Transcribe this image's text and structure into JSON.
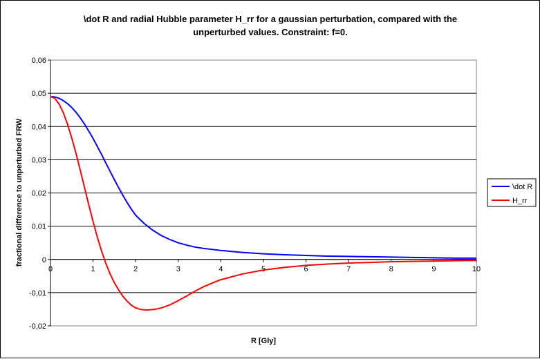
{
  "chart_data": {
    "type": "line",
    "title_lines": [
      "\\dot R and radial Hubble parameter H_rr for a gaussian perturbation, compared with the",
      "unperturbed values. Constraint: f=0."
    ],
    "xlabel": "R [Gly]",
    "ylabel": "fractional difference to unperturbed FRW",
    "xlim": [
      0,
      10
    ],
    "ylim": [
      -0.02,
      0.06
    ],
    "x_ticks": [
      "0",
      "1",
      "2",
      "3",
      "4",
      "5",
      "6",
      "7",
      "8",
      "9",
      "10"
    ],
    "y_ticks": [
      "-0,02",
      "-0,01",
      "0",
      "0,01",
      "0,02",
      "0,03",
      "0,04",
      "0,05",
      "0,06"
    ],
    "grid": "horizontal",
    "legend_position": "right",
    "plot_background": "#ffffff",
    "series": [
      {
        "name": "\\dot R",
        "color": "#0000ff",
        "x": [
          0,
          0.1,
          0.2,
          0.3,
          0.4,
          0.5,
          0.6,
          0.7,
          0.8,
          0.9,
          1.0,
          1.1,
          1.2,
          1.3,
          1.4,
          1.5,
          1.6,
          1.7,
          1.8,
          1.9,
          2.0,
          2.2,
          2.4,
          2.6,
          2.8,
          3.0,
          3.2,
          3.4,
          3.6,
          3.8,
          4.0,
          4.5,
          5.0,
          5.5,
          6.0,
          6.5,
          7.0,
          7.5,
          8.0,
          8.5,
          9.0,
          9.5,
          10.0
        ],
        "y": [
          0.049,
          0.0489,
          0.0485,
          0.0478,
          0.0469,
          0.0457,
          0.0443,
          0.0426,
          0.0407,
          0.0386,
          0.0364,
          0.034,
          0.0316,
          0.029,
          0.0265,
          0.024,
          0.0216,
          0.0193,
          0.0171,
          0.0151,
          0.0133,
          0.0108,
          0.0088,
          0.0072,
          0.006,
          0.005,
          0.0043,
          0.0037,
          0.0033,
          0.003,
          0.0027,
          0.0021,
          0.0017,
          0.0014,
          0.0012,
          0.001,
          0.0009,
          0.0008,
          0.0007,
          0.0006,
          0.0005,
          0.0004,
          0.0004
        ]
      },
      {
        "name": "H_rr",
        "color": "#ff0000",
        "x": [
          0,
          0.1,
          0.2,
          0.3,
          0.4,
          0.5,
          0.6,
          0.7,
          0.8,
          0.9,
          1.0,
          1.1,
          1.2,
          1.3,
          1.4,
          1.5,
          1.6,
          1.7,
          1.8,
          1.9,
          2.0,
          2.1,
          2.2,
          2.3,
          2.4,
          2.5,
          2.6,
          2.8,
          3.0,
          3.2,
          3.4,
          3.6,
          3.8,
          4.0,
          4.5,
          5.0,
          5.5,
          6.0,
          6.5,
          7.0,
          7.5,
          8.0,
          8.5,
          9.0,
          9.5,
          10.0
        ],
        "y": [
          0.049,
          0.0485,
          0.0468,
          0.0442,
          0.0407,
          0.0365,
          0.0319,
          0.0268,
          0.0216,
          0.0164,
          0.0114,
          0.0067,
          0.0025,
          -0.0012,
          -0.0044,
          -0.007,
          -0.0092,
          -0.0111,
          -0.0126,
          -0.0138,
          -0.0146,
          -0.015,
          -0.0152,
          -0.0152,
          -0.0151,
          -0.0149,
          -0.0146,
          -0.0137,
          -0.0124,
          -0.011,
          -0.0095,
          -0.0082,
          -0.0071,
          -0.0061,
          -0.0044,
          -0.0032,
          -0.0024,
          -0.0018,
          -0.0014,
          -0.0011,
          -0.0009,
          -0.0007,
          -0.0006,
          -0.0005,
          -0.0004,
          -0.0003
        ]
      }
    ]
  }
}
